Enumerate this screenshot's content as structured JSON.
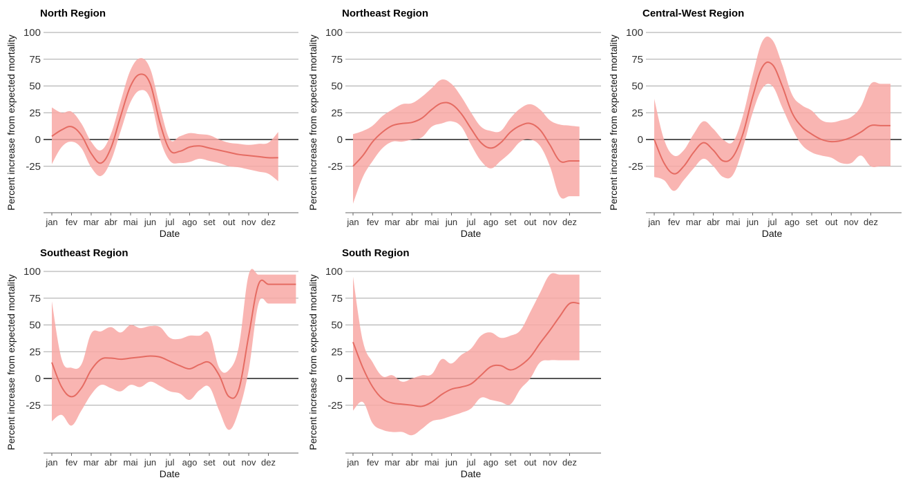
{
  "chart_data": [
    {
      "type": "area",
      "title": "North Region",
      "xlabel": "Date",
      "ylabel": "Percent increase from expected mortality",
      "x_ticks": [
        "jan",
        "fev",
        "mar",
        "abr",
        "mai",
        "jun",
        "jul",
        "ago",
        "set",
        "out",
        "nov",
        "dez"
      ],
      "y_ticks": [
        100,
        75,
        50,
        25,
        0,
        -25
      ],
      "ylim": [
        -70,
        100
      ],
      "grid": true,
      "series": [
        {
          "x": [
            0,
            0.5,
            1,
            1.5,
            2,
            2.5,
            3,
            3.5,
            4,
            4.5,
            5,
            5.5,
            6,
            6.5,
            7,
            7.5,
            8,
            8.5,
            9,
            9.5,
            10,
            10.5,
            11,
            11.5
          ],
          "y": [
            3,
            9,
            12,
            4,
            -13,
            -22,
            -8,
            22,
            50,
            61,
            52,
            15,
            -10,
            -11,
            -7,
            -6,
            -8,
            -10,
            -12,
            -14,
            -15,
            -16,
            -17,
            -17
          ],
          "upper": [
            30,
            25,
            26,
            15,
            -2,
            -10,
            5,
            36,
            65,
            76,
            66,
            30,
            0,
            3,
            6,
            5,
            4,
            0,
            -3,
            -4,
            -5,
            -4,
            -3,
            7
          ],
          "lower": [
            -23,
            -7,
            -2,
            -8,
            -26,
            -34,
            -20,
            8,
            35,
            46,
            38,
            0,
            -20,
            -22,
            -21,
            -18,
            -20,
            -22,
            -25,
            -26,
            -28,
            -30,
            -32,
            -39
          ]
        }
      ]
    },
    {
      "type": "area",
      "title": "Northeast Region",
      "xlabel": "Date",
      "ylabel": "Percent increase from expected mortality",
      "x_ticks": [
        "jan",
        "fev",
        "mar",
        "abr",
        "mai",
        "jun",
        "jul",
        "ago",
        "set",
        "out",
        "nov",
        "dez"
      ],
      "y_ticks": [
        100,
        75,
        50,
        25,
        0,
        -25
      ],
      "ylim": [
        -70,
        100
      ],
      "grid": true,
      "series": [
        {
          "x": [
            0,
            0.5,
            1,
            1.5,
            2,
            2.5,
            3,
            3.5,
            4,
            4.5,
            5,
            5.5,
            6,
            6.5,
            7,
            7.5,
            8,
            8.5,
            9,
            9.5,
            10,
            10.5,
            11,
            11.5
          ],
          "y": [
            -25,
            -15,
            -2,
            7,
            13,
            15,
            16,
            20,
            28,
            34,
            33,
            24,
            10,
            -3,
            -8,
            -3,
            7,
            13,
            15,
            9,
            -5,
            -20,
            -20,
            -20
          ],
          "upper": [
            5,
            8,
            13,
            22,
            28,
            33,
            34,
            40,
            48,
            56,
            52,
            40,
            25,
            12,
            8,
            8,
            20,
            29,
            33,
            28,
            18,
            14,
            13,
            12
          ],
          "lower": [
            -60,
            -35,
            -20,
            -8,
            -2,
            -2,
            0,
            2,
            12,
            15,
            17,
            12,
            -5,
            -20,
            -27,
            -20,
            -12,
            -2,
            0,
            -6,
            -25,
            -53,
            -53,
            -53
          ]
        }
      ]
    },
    {
      "type": "area",
      "title": "Central-West Region",
      "xlabel": "Date",
      "ylabel": "Percent increase from expected mortality",
      "x_ticks": [
        "jan",
        "fev",
        "mar",
        "abr",
        "mai",
        "jun",
        "jul",
        "ago",
        "set",
        "out",
        "nov",
        "dez"
      ],
      "y_ticks": [
        100,
        75,
        50,
        25,
        0,
        -25
      ],
      "ylim": [
        -70,
        100
      ],
      "grid": true,
      "series": [
        {
          "x": [
            0,
            0.5,
            1,
            1.5,
            2,
            2.5,
            3,
            3.5,
            4,
            4.5,
            5,
            5.5,
            6,
            6.5,
            7,
            7.5,
            8,
            8.5,
            9,
            9.5,
            10,
            10.5,
            11,
            11.5,
            12
          ],
          "y": [
            0,
            -22,
            -32,
            -25,
            -12,
            -3,
            -10,
            -20,
            -16,
            5,
            40,
            68,
            70,
            50,
            25,
            12,
            5,
            0,
            -2,
            -1,
            2,
            7,
            13,
            13,
            13
          ],
          "upper": [
            38,
            0,
            -15,
            -10,
            5,
            17,
            10,
            0,
            -2,
            22,
            60,
            92,
            93,
            70,
            42,
            32,
            27,
            18,
            16,
            18,
            21,
            31,
            52,
            52,
            52
          ],
          "lower": [
            -35,
            -38,
            -48,
            -38,
            -27,
            -18,
            -25,
            -35,
            -33,
            -8,
            25,
            48,
            50,
            30,
            10,
            -5,
            -12,
            -15,
            -17,
            -22,
            -22,
            -15,
            -25,
            -25,
            -25
          ]
        }
      ]
    },
    {
      "type": "area",
      "title": "Southeast Region",
      "xlabel": "Date",
      "ylabel": "Percent increase from expected mortality",
      "x_ticks": [
        "jan",
        "fev",
        "mar",
        "abr",
        "mai",
        "jun",
        "jul",
        "ago",
        "set",
        "out",
        "nov",
        "dez"
      ],
      "y_ticks": [
        100,
        75,
        50,
        25,
        0,
        -25
      ],
      "ylim": [
        -70,
        100
      ],
      "grid": true,
      "series": [
        {
          "x": [
            0,
            0.5,
            1,
            1.5,
            2,
            2.5,
            3,
            3.5,
            4,
            4.5,
            5,
            5.5,
            6,
            6.5,
            7,
            7.5,
            8,
            8.5,
            9,
            9.5,
            10,
            10.5,
            11,
            11.5,
            12,
            12.4
          ],
          "y": [
            15,
            -8,
            -17,
            -9,
            8,
            18,
            19,
            18,
            19,
            20,
            21,
            20,
            16,
            12,
            9,
            13,
            15,
            3,
            -17,
            -10,
            40,
            88,
            88,
            88,
            88,
            88
          ],
          "upper": [
            72,
            18,
            10,
            13,
            42,
            44,
            48,
            43,
            50,
            47,
            49,
            48,
            38,
            37,
            40,
            40,
            42,
            10,
            8,
            30,
            97,
            97,
            97,
            97,
            97,
            97
          ],
          "lower": [
            -40,
            -34,
            -44,
            -30,
            -15,
            -6,
            -9,
            -12,
            -6,
            -8,
            -3,
            -7,
            -12,
            -14,
            -20,
            -11,
            -8,
            -30,
            -48,
            -30,
            8,
            70,
            70,
            70,
            70,
            70
          ]
        }
      ]
    },
    {
      "type": "area",
      "title": "South Region",
      "xlabel": "Date",
      "ylabel": "Percent increase from expected mortality",
      "x_ticks": [
        "jan",
        "fev",
        "mar",
        "abr",
        "mai",
        "jun",
        "jul",
        "ago",
        "set",
        "out",
        "nov",
        "dez"
      ],
      "y_ticks": [
        100,
        75,
        50,
        25,
        0,
        -25
      ],
      "ylim": [
        -70,
        100
      ],
      "grid": true,
      "series": [
        {
          "x": [
            0,
            0.5,
            1,
            1.5,
            2,
            2.5,
            3,
            3.5,
            4,
            4.5,
            5,
            5.5,
            6,
            6.5,
            7,
            7.5,
            8,
            8.5,
            9,
            9.5,
            10,
            10.5,
            11,
            11.5
          ],
          "y": [
            34,
            10,
            -8,
            -19,
            -23,
            -24,
            -25,
            -26,
            -22,
            -15,
            -10,
            -8,
            -5,
            3,
            11,
            12,
            8,
            12,
            20,
            33,
            45,
            58,
            70,
            70
          ],
          "upper": [
            95,
            35,
            15,
            2,
            3,
            -3,
            0,
            3,
            4,
            18,
            14,
            22,
            28,
            40,
            43,
            38,
            40,
            45,
            62,
            80,
            97,
            97,
            97,
            97
          ],
          "lower": [
            -30,
            -22,
            -42,
            -48,
            -50,
            -50,
            -53,
            -47,
            -40,
            -38,
            -35,
            -32,
            -28,
            -18,
            -20,
            -22,
            -24,
            -10,
            0,
            15,
            17,
            17,
            17,
            17
          ]
        }
      ]
    }
  ]
}
